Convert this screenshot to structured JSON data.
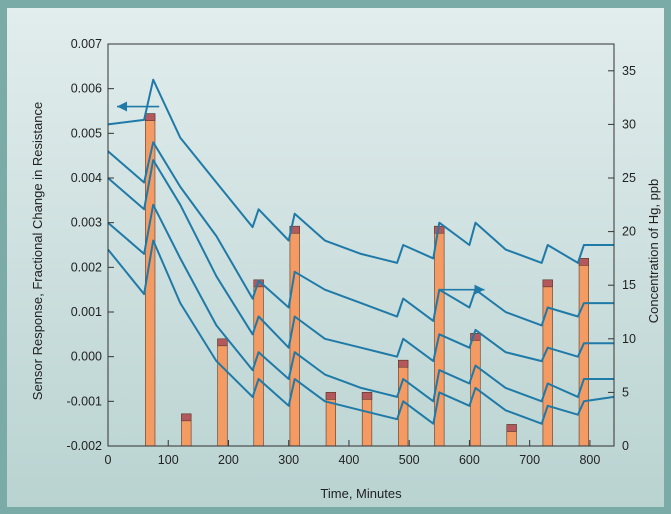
{
  "chart_data": {
    "type": "bar",
    "xlabel": "Time, Minutes",
    "ylabel_left": "Sensor Response, Fractional Change in Resistance",
    "ylabel_right": "Concentration of Hg, ppb",
    "xlim": [
      0,
      840
    ],
    "ylim_left": [
      -0.002,
      0.007
    ],
    "ylim_right": [
      0,
      37.5
    ],
    "x_ticks": [
      0,
      100,
      200,
      300,
      400,
      500,
      600,
      700,
      800
    ],
    "y_left_ticks": [
      -0.002,
      -0.001,
      0.0,
      0.001,
      0.002,
      0.003,
      0.004,
      0.005,
      0.006,
      0.007
    ],
    "y_left_tick_labels": [
      "-0.002",
      "-0.001",
      "0.000",
      "0.001",
      "0.002",
      "0.003",
      "0.004",
      "0.005",
      "0.006",
      "0.007"
    ],
    "y_right_ticks": [
      0,
      5,
      10,
      15,
      20,
      25,
      30,
      35
    ],
    "bars": {
      "width_minutes": 16,
      "x": [
        70,
        130,
        190,
        250,
        310,
        370,
        430,
        490,
        550,
        610,
        670,
        730,
        790
      ],
      "values": [
        31,
        3,
        10,
        15.5,
        20.5,
        5,
        5,
        8,
        20.5,
        10.5,
        2,
        15.5,
        17.5
      ],
      "color": "#f49a63",
      "cap_color": "#b5585c"
    },
    "series": [
      {
        "x": [
          0,
          60,
          75,
          120,
          180,
          240,
          250,
          300,
          310,
          360,
          420,
          480,
          490,
          540,
          550,
          600,
          610,
          660,
          720,
          730,
          780,
          790,
          840
        ],
        "values": [
          0.0052,
          0.0053,
          0.0062,
          0.0049,
          0.0039,
          0.0029,
          0.0033,
          0.0026,
          0.0032,
          0.0026,
          0.0023,
          0.0021,
          0.0025,
          0.0022,
          0.003,
          0.0025,
          0.003,
          0.0024,
          0.0021,
          0.0025,
          0.0021,
          0.0025,
          0.0025
        ]
      },
      {
        "x": [
          0,
          60,
          75,
          120,
          180,
          240,
          250,
          300,
          310,
          360,
          420,
          480,
          490,
          540,
          550,
          600,
          610,
          660,
          720,
          730,
          780,
          790,
          840
        ],
        "values": [
          0.0046,
          0.0039,
          0.0048,
          0.0038,
          0.0027,
          0.0013,
          0.0017,
          0.0011,
          0.0019,
          0.0015,
          0.0012,
          0.0009,
          0.0013,
          0.0008,
          0.0015,
          0.0011,
          0.0015,
          0.001,
          0.0007,
          0.0011,
          0.0009,
          0.0012,
          0.0012
        ]
      },
      {
        "x": [
          0,
          60,
          75,
          120,
          180,
          240,
          250,
          300,
          310,
          360,
          420,
          480,
          490,
          540,
          550,
          600,
          610,
          660,
          720,
          730,
          780,
          790,
          840
        ],
        "values": [
          0.004,
          0.0033,
          0.0044,
          0.0034,
          0.0018,
          0.0005,
          0.0009,
          0.0002,
          0.0009,
          0.0004,
          0.0002,
          0.0,
          0.0004,
          -0.0001,
          0.0005,
          0.0002,
          0.0006,
          0.0001,
          -0.0001,
          0.0002,
          0.0,
          0.0003,
          0.0003
        ]
      },
      {
        "x": [
          0,
          60,
          75,
          120,
          180,
          240,
          250,
          300,
          310,
          360,
          420,
          480,
          490,
          540,
          550,
          600,
          610,
          660,
          720,
          730,
          780,
          790,
          840
        ],
        "values": [
          0.003,
          0.0023,
          0.0034,
          0.0022,
          0.0007,
          -0.0003,
          0.0001,
          -0.0005,
          0.0001,
          -0.0004,
          -0.0007,
          -0.0009,
          -0.0005,
          -0.001,
          -0.0003,
          -0.0006,
          -0.0002,
          -0.0007,
          -0.001,
          -0.0006,
          -0.0009,
          -0.0005,
          -0.0005
        ]
      },
      {
        "x": [
          0,
          60,
          75,
          120,
          180,
          240,
          250,
          300,
          310,
          360,
          420,
          480,
          490,
          540,
          550,
          600,
          610,
          660,
          720,
          730,
          780,
          790,
          840
        ],
        "values": [
          0.0024,
          0.0014,
          0.0026,
          0.0012,
          -0.0001,
          -0.0009,
          -0.0005,
          -0.0011,
          -0.0005,
          -0.001,
          -0.0012,
          -0.0014,
          -0.001,
          -0.0015,
          -0.0008,
          -0.0011,
          -0.0007,
          -0.0012,
          -0.0015,
          -0.0011,
          -0.0013,
          -0.001,
          -0.0009
        ]
      }
    ],
    "line_color": "#1f7aa8",
    "arrows": [
      {
        "direction": "left",
        "x_from": 85,
        "x_to": 15,
        "y": 0.0056
      },
      {
        "direction": "right",
        "x_from": 550,
        "x_to": 625,
        "y": 0.0015
      }
    ],
    "grid": false
  }
}
